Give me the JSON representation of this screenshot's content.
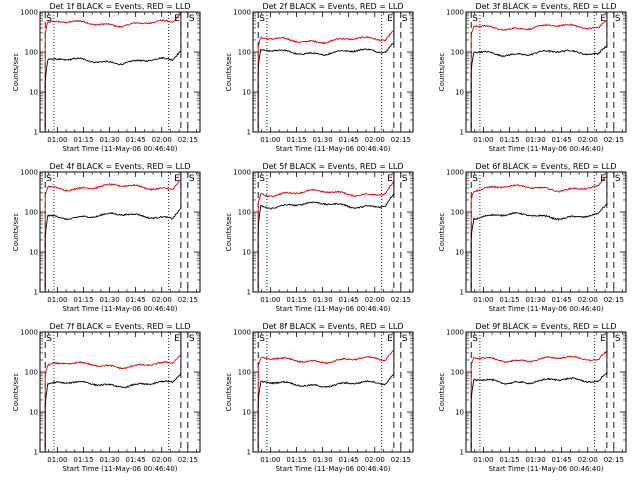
{
  "figure": {
    "type": "line",
    "panels": [
      {
        "title": "Det 1f BLACK = Events, RED = LLD",
        "events_level": 60,
        "lld_level": 520,
        "events_start": 18,
        "lld_start": 300,
        "e_line_time": "02:10",
        "s_line_time": "02:14"
      },
      {
        "title": "Det 2f BLACK = Events, RED = LLD",
        "events_level": 100,
        "lld_level": 200,
        "events_start": 35,
        "lld_start": 120,
        "e_line_time": "02:10",
        "s_line_time": "02:14"
      },
      {
        "title": "Det 3f BLACK = Events, RED = LLD",
        "events_level": 95,
        "lld_level": 420,
        "events_start": 30,
        "lld_start": 250,
        "e_line_time": "02:10",
        "s_line_time": "02:14"
      },
      {
        "title": "Det 4f BLACK = Events, RED = LLD",
        "events_level": 80,
        "lld_level": 420,
        "events_start": 22,
        "lld_start": 250,
        "e_line_time": "02:10",
        "s_line_time": "02:14"
      },
      {
        "title": "Det 5f BLACK = Events, RED = LLD",
        "events_level": 150,
        "lld_level": 300,
        "events_start": 40,
        "lld_start": 180,
        "e_line_time": "02:10",
        "s_line_time": "02:14"
      },
      {
        "title": "Det 6f BLACK = Events, RED = LLD",
        "events_level": 80,
        "lld_level": 400,
        "events_start": 25,
        "lld_start": 240,
        "e_line_time": "02:10",
        "s_line_time": "02:14"
      },
      {
        "title": "Det 7f BLACK = Events, RED = LLD",
        "events_level": 50,
        "lld_level": 150,
        "events_start": 15,
        "lld_start": 90,
        "e_line_time": "02:10",
        "s_line_time": "02:14"
      },
      {
        "title": "Det 8f BLACK = Events, RED = LLD",
        "events_level": 50,
        "lld_level": 200,
        "events_start": 16,
        "lld_start": 120,
        "e_line_time": "02:10",
        "s_line_time": "02:14"
      },
      {
        "title": "Det 9f BLACK = Events, RED = LLD",
        "events_level": 60,
        "lld_level": 210,
        "events_start": 18,
        "lld_start": 130,
        "e_line_time": "02:10",
        "s_line_time": "02:14"
      }
    ]
  },
  "chart_data": {
    "type": "line",
    "xlabel": "Start Time (11-May-06 00:46:40)",
    "ylabel": "Counts/sec",
    "x_ticks": [
      "01:00",
      "01:15",
      "01:30",
      "01:45",
      "02:00",
      "02:15"
    ],
    "x_tick_minutes": [
      60,
      75,
      90,
      105,
      120,
      135
    ],
    "x_range_minutes": [
      50,
      142
    ],
    "y_ticks": [
      "1",
      "10",
      "100",
      "1000"
    ],
    "y_scale": "log",
    "ylim": [
      1,
      1000
    ],
    "series_colors": {
      "events": "#000000",
      "lld": "#e00000"
    },
    "series_names": [
      "Events",
      "LLD"
    ],
    "dashed_lines_minutes": [
      53,
      131,
      135
    ],
    "dotted_lines_minutes": [
      58,
      124
    ],
    "markers": [
      {
        "label": "S",
        "at": 53
      },
      {
        "label": "E",
        "at": 131
      },
      {
        "label": "S",
        "at": 135
      }
    ]
  }
}
